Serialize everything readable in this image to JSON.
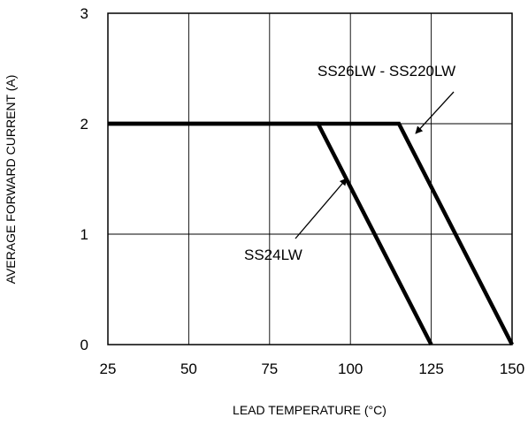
{
  "chart_data": {
    "type": "line",
    "xlabel": "LEAD TEMPERATURE (°C)",
    "ylabel": "AVERAGE FORWARD CURRENT (A)",
    "xlim": [
      25,
      150
    ],
    "ylim": [
      0,
      3
    ],
    "x_ticks": [
      "25",
      "50",
      "75",
      "100",
      "125",
      "150"
    ],
    "y_ticks": [
      "0",
      "1",
      "2",
      "3"
    ],
    "grid": true,
    "series": [
      {
        "name": "SS24LW",
        "points": [
          [
            25,
            2
          ],
          [
            90,
            2
          ],
          [
            125,
            0
          ]
        ]
      },
      {
        "name": "SS26LW - SS220LW",
        "points": [
          [
            25,
            2
          ],
          [
            115,
            2
          ],
          [
            150,
            0
          ]
        ]
      }
    ],
    "annotations": [
      {
        "text": "SS24LW",
        "points_to": [
          99,
          1.5
        ]
      },
      {
        "text": "SS26LW - SS220LW",
        "points_to": [
          118,
          1.9
        ]
      }
    ]
  }
}
